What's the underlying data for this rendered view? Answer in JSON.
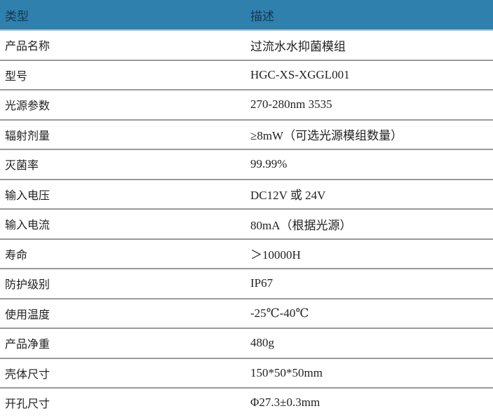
{
  "header": {
    "col1": "类型",
    "col2": "描述",
    "header_color": "#2f80ad"
  },
  "rows": [
    {
      "label": "产品名称",
      "value": "过流水水抑菌模组"
    },
    {
      "label": "型号",
      "value": "HGC-XS-XGGL001"
    },
    {
      "label": "光源参数",
      "value": "270-280nm  3535"
    },
    {
      "label": "辐射剂量",
      "value": "≥8mW（可选光源模组数量）"
    },
    {
      "label": "灭菌率",
      "value": "99.99%"
    },
    {
      "label": "输入电压",
      "value": "DC12V 或 24V"
    },
    {
      "label": "输入电流",
      "value": "80mA（根据光源）"
    },
    {
      "label": "寿命",
      "value": "＞10000H"
    },
    {
      "label": "防护级别",
      "value": "IP67"
    },
    {
      "label": "使用温度",
      "value": "-25℃-40℃"
    },
    {
      "label": "产品净重",
      "value": "480g"
    },
    {
      "label": "壳体尺寸",
      "value": "150*50*50mm"
    },
    {
      "label": "开孔尺寸",
      "value": "Φ27.3±0.3mm"
    }
  ]
}
